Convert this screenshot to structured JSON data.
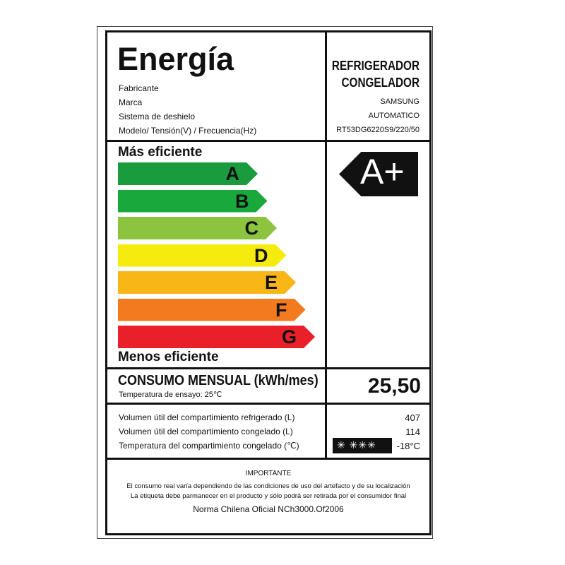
{
  "header": {
    "title": "Energía",
    "fields": [
      "Fabricante",
      "Marca",
      "Sistema de deshielo",
      "Modelo/ Tensión(V) / Frecuencia(Hz)"
    ],
    "product_type_line1": "REFRIGERADOR",
    "product_type_line2": "CONGELADOR",
    "values": [
      "SAMSUNG",
      "AUTOMATICO",
      "RT53DG6220S9/220/50"
    ]
  },
  "scale": {
    "top_label": "Más eficiente",
    "bottom_label": "Menos eficiente",
    "classes": [
      {
        "letter": "A",
        "color": "#1a9b3e"
      },
      {
        "letter": "B",
        "color": "#19a83b"
      },
      {
        "letter": "C",
        "color": "#8cc43f"
      },
      {
        "letter": "D",
        "color": "#f6eb0e"
      },
      {
        "letter": "E",
        "color": "#f8b617"
      },
      {
        "letter": "F",
        "color": "#f47a20"
      },
      {
        "letter": "G",
        "color": "#e9202a"
      }
    ],
    "rating": "A+"
  },
  "consumption": {
    "title": "CONSUMO MENSUAL (kWh/mes)",
    "subtitle": "Temperatura de ensayo: 25℃",
    "value": "25,50"
  },
  "volumes": {
    "rows": [
      {
        "label": "Volumen útil del compartimiento refrigerado (L)",
        "value": "407"
      },
      {
        "label": "Volumen útil del compartimiento congelado (L)",
        "value": "114"
      },
      {
        "label": "Temperatura del compartimiento congelado (℃)",
        "value": "-18°C"
      }
    ],
    "freezer_stars": "✳ ✳✳✳"
  },
  "important": {
    "title": "IMPORTANTE",
    "line1": "El consumo real varía dependiendo de las condiciones de uso del artefacto y de su localización",
    "line2": "La etiqueta debe parmanecer en el producto y sólo podrá ser retirada por el consumidor final",
    "norm": "Norma Chilena Oficial NCh3000.Of2006"
  }
}
